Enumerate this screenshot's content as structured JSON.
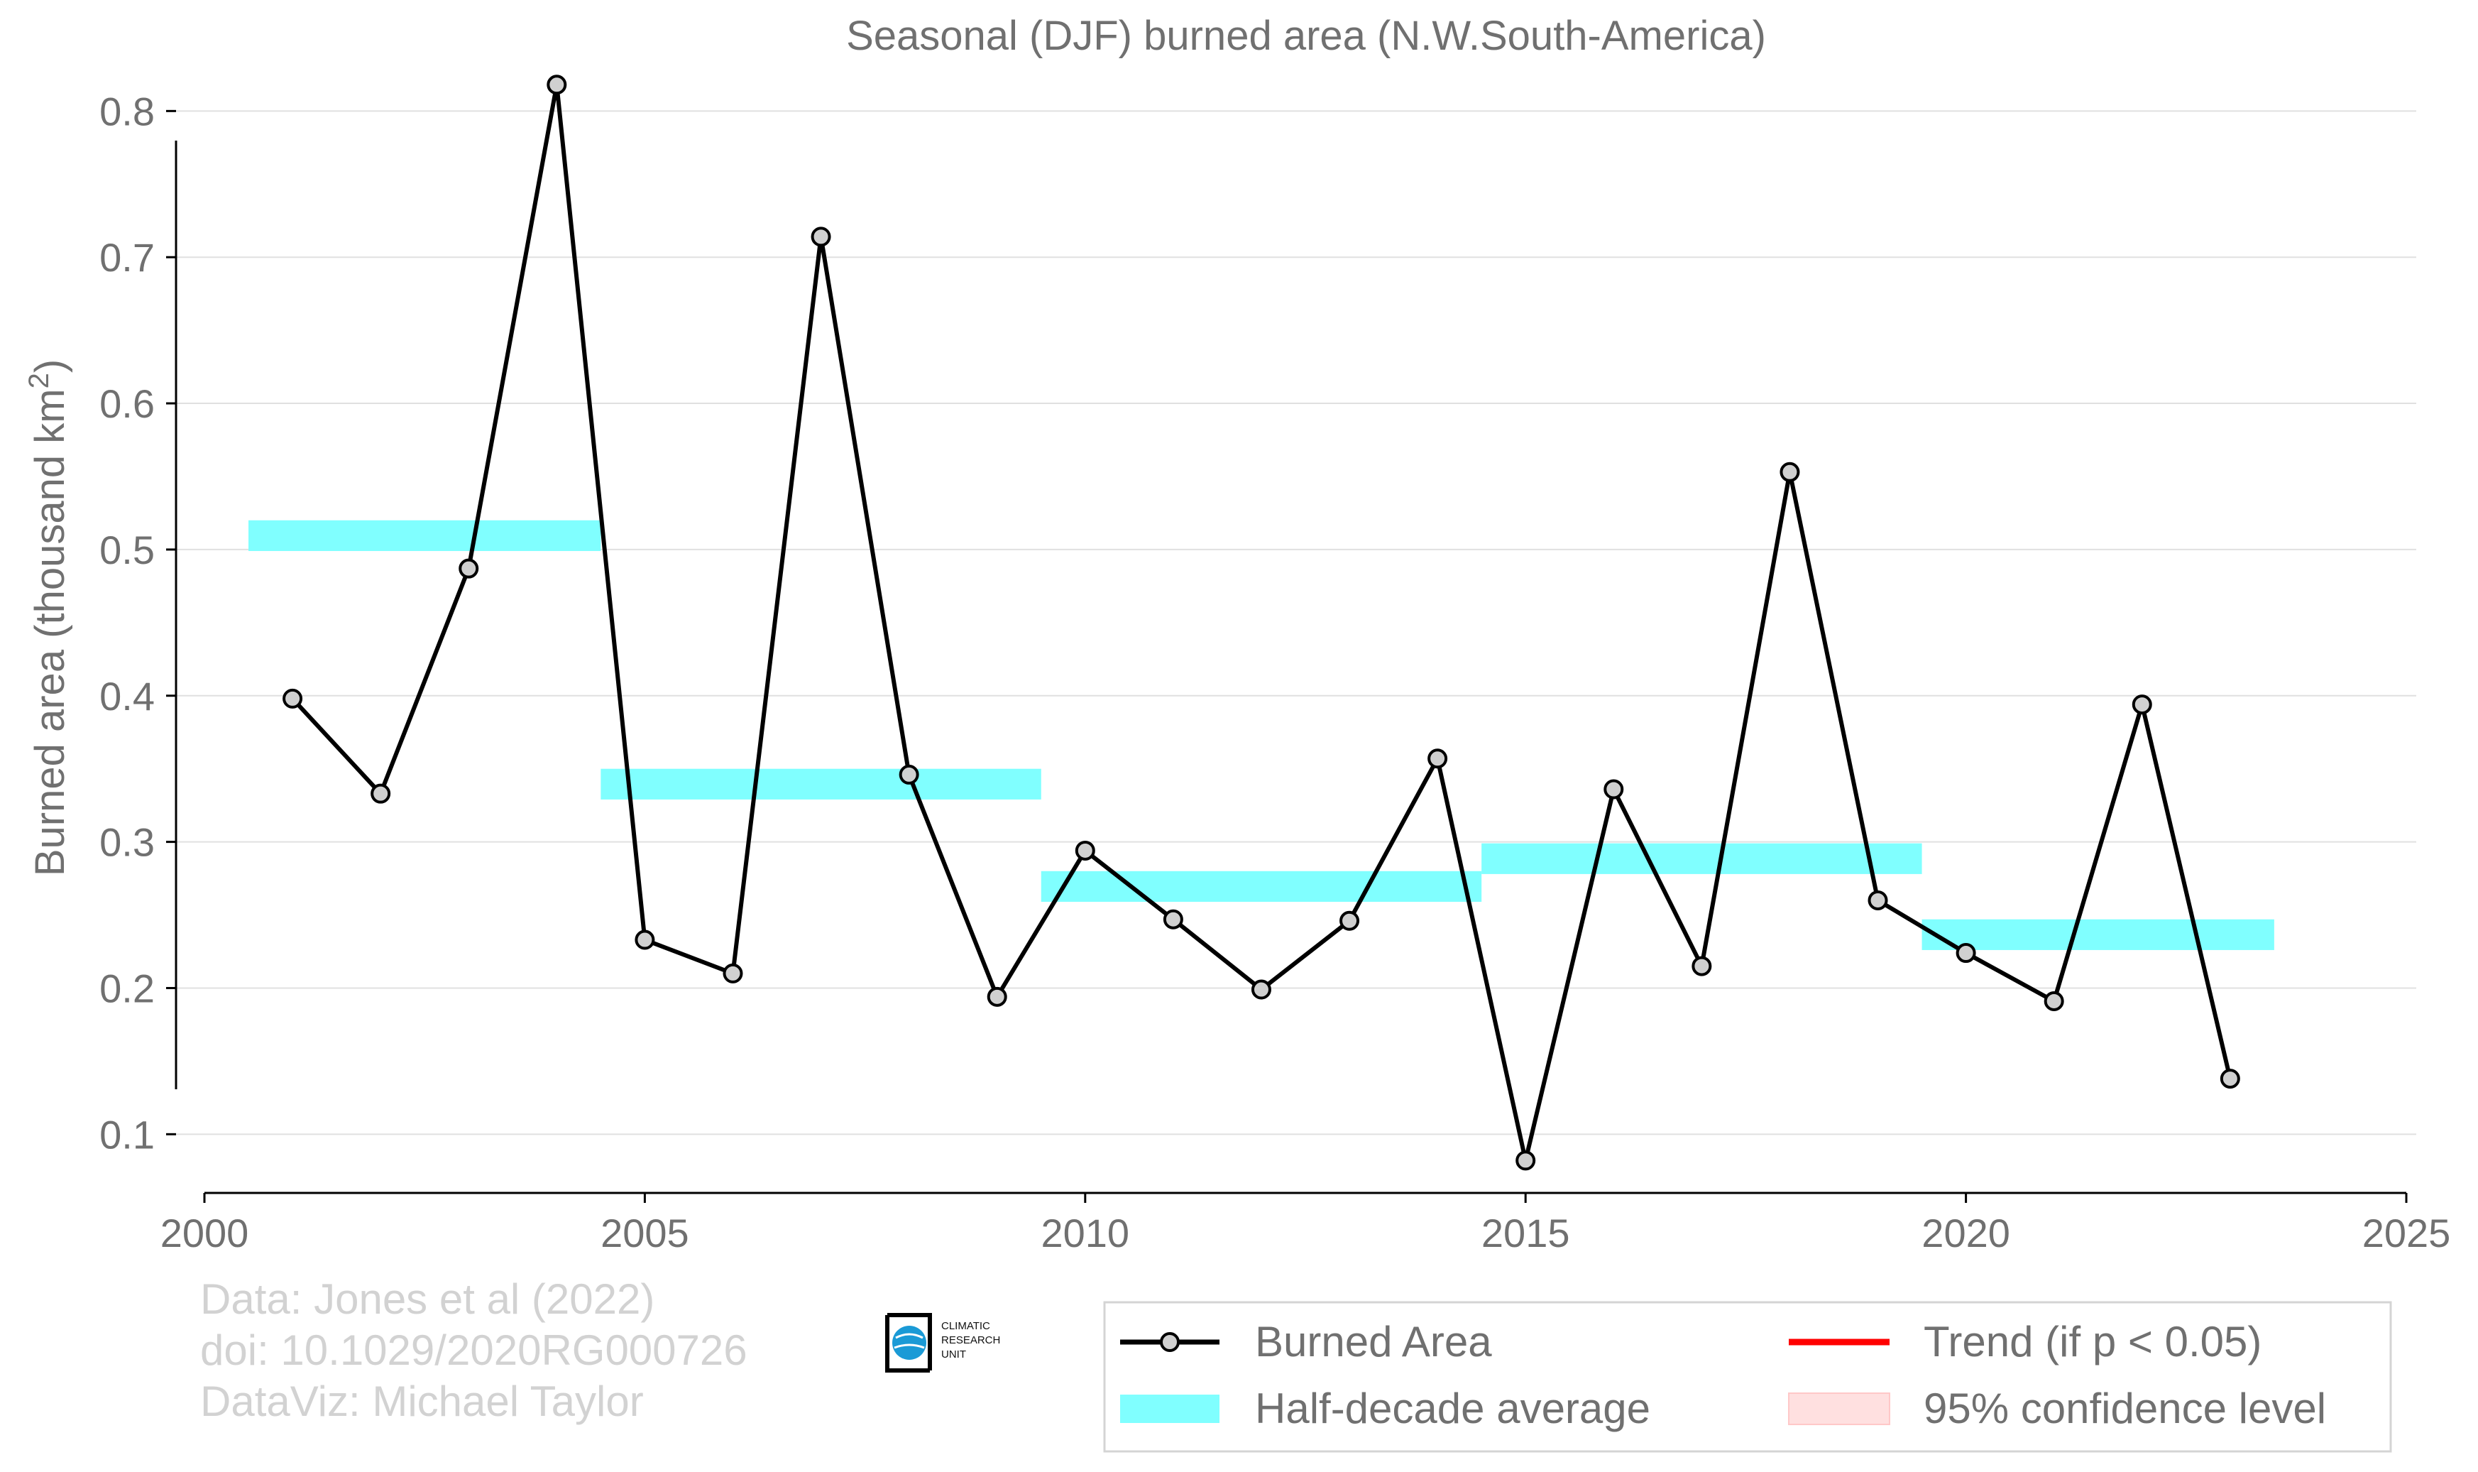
{
  "chart_data": {
    "type": "line",
    "title": "Seasonal (DJF) burned area (N.W.South-America)",
    "xlabel": "",
    "ylabel": "Burned area (thousand km",
    "ylabel_sup": "2",
    "ylabel_close": ")",
    "xlim": [
      2000,
      2025
    ],
    "ylim": [
      0.02,
      0.84
    ],
    "x_ticks": [
      "2000",
      "2005",
      "2010",
      "2015",
      "2020",
      "2025"
    ],
    "y_ticks": [
      "0.1",
      "0.2",
      "0.3",
      "0.4",
      "0.5",
      "0.6",
      "0.7",
      "0.8"
    ],
    "grid": "horizontal",
    "legend_position": "bottom-right",
    "series": [
      {
        "name": "Burned Area",
        "color": "#000000",
        "marker_fill": "#d0d0d0",
        "x": [
          2001,
          2002,
          2003,
          2004,
          2005,
          2006,
          2007,
          2008,
          2009,
          2010,
          2011,
          2012,
          2013,
          2014,
          2015,
          2016,
          2017,
          2018,
          2019,
          2020,
          2021,
          2022,
          2023
        ],
        "values": [
          0.398,
          0.333,
          0.487,
          0.818,
          0.233,
          0.21,
          0.714,
          0.346,
          0.194,
          0.294,
          0.247,
          0.199,
          0.246,
          0.357,
          0.082,
          0.336,
          0.215,
          0.553,
          0.26,
          0.224,
          0.191,
          0.394,
          0.138
        ]
      }
    ],
    "half_decade_average": {
      "name": "Half-decade average",
      "color": "#80ffff",
      "segments": [
        {
          "x0": 2000.5,
          "x1": 2004.5,
          "y0": 0.499,
          "y1": 0.52
        },
        {
          "x0": 2004.5,
          "x1": 2009.5,
          "y0": 0.329,
          "y1": 0.35
        },
        {
          "x0": 2009.5,
          "x1": 2014.5,
          "y0": 0.259,
          "y1": 0.28
        },
        {
          "x0": 2014.5,
          "x1": 2019.5,
          "y0": 0.278,
          "y1": 0.299
        },
        {
          "x0": 2019.5,
          "x1": 2023.5,
          "y0": 0.226,
          "y1": 0.247
        }
      ]
    },
    "legend": [
      {
        "label": "Burned Area",
        "kind": "line-marker",
        "color": "#000000"
      },
      {
        "label": "Half-decade average",
        "kind": "patch",
        "color": "#80ffff"
      },
      {
        "label": "Trend (if p < 0.05)",
        "kind": "line",
        "color": "#ff0000"
      },
      {
        "label": "95% confidence level",
        "kind": "patch",
        "color": "#ffe0e0"
      }
    ]
  },
  "credits": {
    "line1": "Data: Jones et al (2022)",
    "line2": "doi: 10.1029/2020RG000726",
    "line3": "DataViz: Michael Taylor"
  },
  "logo": {
    "line1": "CLIMATIC",
    "line2": "RESEARCH",
    "line3": "UNIT"
  },
  "colors": {
    "text": "#707070",
    "grid": "#e0e0e0",
    "axis": "#000000"
  }
}
